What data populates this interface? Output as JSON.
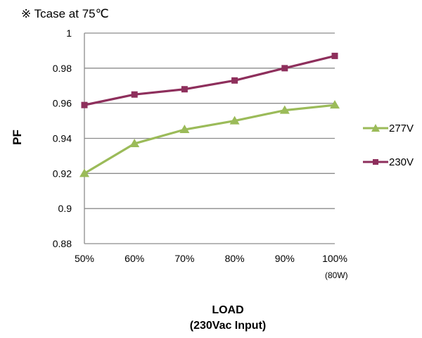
{
  "note": "※ Tcase at 75℃",
  "chart_data": {
    "type": "line",
    "title": "",
    "xlabel_line1": "LOAD",
    "xlabel_line2": "(230Vac Input)",
    "ylabel": "PF",
    "categories": [
      "50%",
      "60%",
      "70%",
      "80%",
      "90%",
      "100%"
    ],
    "last_category_note": "(80W)",
    "yticks": [
      "0.88",
      "0.9",
      "0.92",
      "0.94",
      "0.96",
      "0.98",
      "1"
    ],
    "ylim": [
      0.88,
      1.0
    ],
    "grid": true,
    "legend_position": "right",
    "series": [
      {
        "name": "277V",
        "color": "#9bbb59",
        "marker": "triangle",
        "values": [
          0.92,
          0.937,
          0.945,
          0.95,
          0.956,
          0.959
        ]
      },
      {
        "name": "230V",
        "color": "#8e2f5c",
        "marker": "square",
        "values": [
          0.959,
          0.965,
          0.968,
          0.973,
          0.98,
          0.987
        ]
      }
    ]
  }
}
